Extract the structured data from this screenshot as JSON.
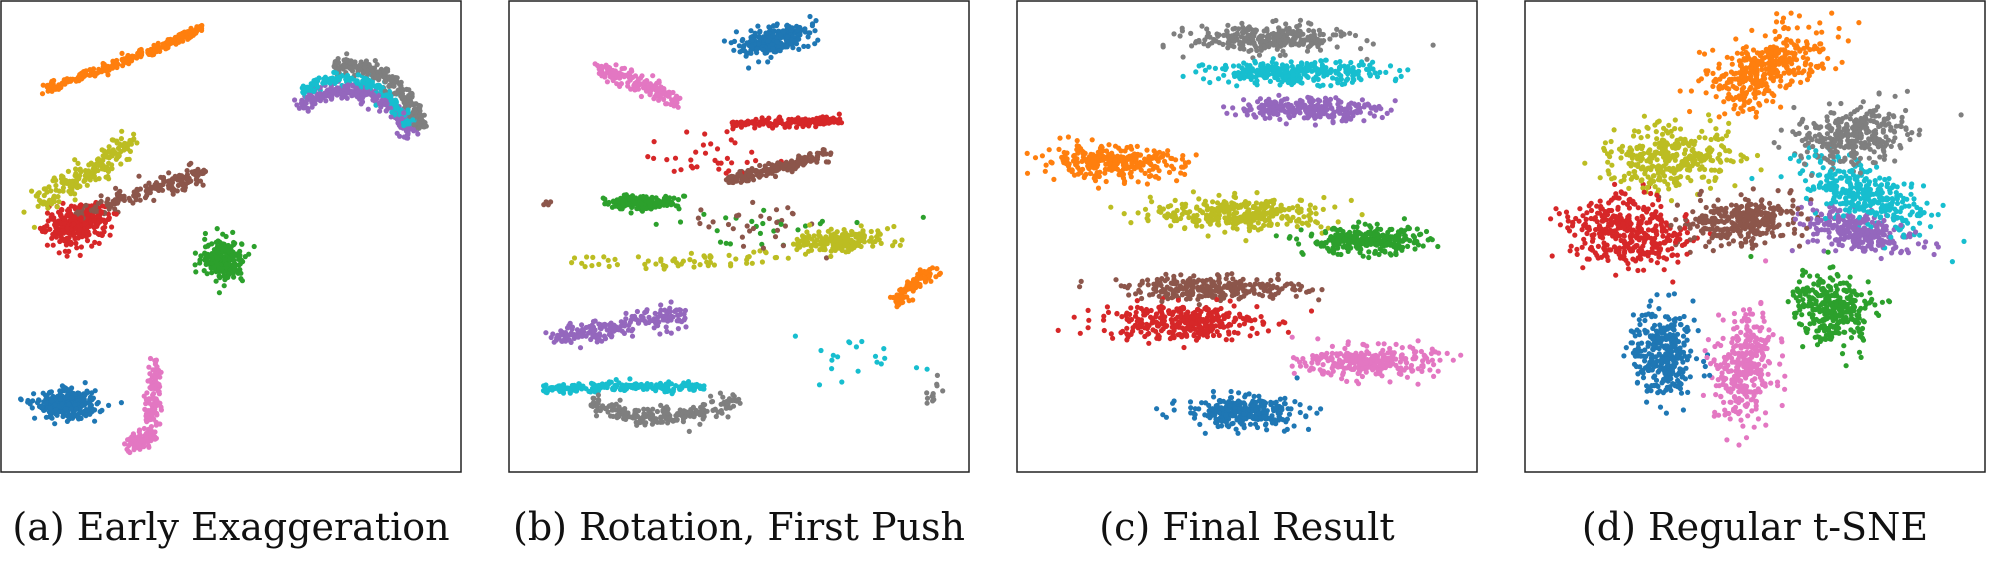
{
  "chart_data": [
    {
      "type": "scatter",
      "caption": "(a) Early Exaggeration",
      "grid": false,
      "series": [
        {
          "color": "#ff7f0e",
          "clusters": [
            {
              "line": [
                [
                  -0.85,
                  0.66
                ],
                [
                  -0.6,
                  0.74
                ],
                [
                  -0.35,
                  0.83
                ],
                [
                  -0.13,
                  0.93
                ]
              ],
              "count": 260,
              "spread": 0.01
            }
          ]
        },
        {
          "color": "#7f7f7f",
          "clusters": [
            {
              "arc": {
                "cx": 0.53,
                "cy": 0.42,
                "r": 0.34,
                "a0": 100,
                "a1": 10
              },
              "count": 260,
              "spread": 0.018
            }
          ]
        },
        {
          "color": "#17becf",
          "clusters": [
            {
              "arc": {
                "cx": 0.51,
                "cy": 0.38,
                "r": 0.32,
                "a0": 125,
                "a1": 20
              },
              "count": 220,
              "spread": 0.016
            }
          ]
        },
        {
          "color": "#9467bd",
          "clusters": [
            {
              "arc": {
                "cx": 0.52,
                "cy": 0.32,
                "r": 0.33,
                "a0": 130,
                "a1": 22
              },
              "count": 230,
              "spread": 0.018
            }
          ]
        },
        {
          "color": "#bcbd22",
          "clusters": [
            {
              "line": [
                [
                  -0.88,
                  0.15
                ],
                [
                  -0.65,
                  0.28
                ],
                [
                  -0.46,
                  0.43
                ]
              ],
              "count": 200,
              "spread": 0.03
            }
          ]
        },
        {
          "color": "#8c564b",
          "clusters": [
            {
              "line": [
                [
                  -0.7,
                  0.1
                ],
                [
                  -0.4,
                  0.2
                ],
                [
                  -0.13,
                  0.28
                ]
              ],
              "count": 200,
              "spread": 0.02
            }
          ]
        },
        {
          "color": "#d62728",
          "clusters": [
            {
              "ellipse": {
                "cx": -0.7,
                "cy": 0.05,
                "rx": 0.14,
                "ry": 0.08,
                "rot": 15
              },
              "count": 320
            }
          ]
        },
        {
          "color": "#2ca02c",
          "clusters": [
            {
              "ellipse": {
                "cx": -0.03,
                "cy": -0.1,
                "rx": 0.1,
                "ry": 0.09,
                "rot": -10
              },
              "count": 230
            }
          ]
        },
        {
          "color": "#1f77b4",
          "clusters": [
            {
              "ellipse": {
                "cx": -0.75,
                "cy": -0.75,
                "rx": 0.14,
                "ry": 0.06,
                "rot": 0
              },
              "count": 300
            }
          ]
        },
        {
          "color": "#e377c2",
          "clusters": [
            {
              "line": [
                [
                  -0.35,
                  -0.57
                ],
                [
                  -0.35,
                  -0.72
                ],
                [
                  -0.38,
                  -0.9
                ],
                [
                  -0.47,
                  -0.93
                ]
              ],
              "count": 200,
              "spread": 0.018
            }
          ]
        }
      ]
    },
    {
      "type": "scatter",
      "caption": "(b) Rotation, First Push",
      "grid": false,
      "series": [
        {
          "color": "#1f77b4",
          "clusters": [
            {
              "ellipse": {
                "cx": 0.16,
                "cy": 0.87,
                "rx": 0.15,
                "ry": 0.06,
                "rot": 15
              },
              "count": 250
            }
          ]
        },
        {
          "color": "#e377c2",
          "clusters": [
            {
              "line": [
                [
                  -0.62,
                  0.74
                ],
                [
                  -0.45,
                  0.68
                ],
                [
                  -0.28,
                  0.6
                ]
              ],
              "count": 160,
              "spread": 0.02
            }
          ]
        },
        {
          "color": "#d62728",
          "clusters": [
            {
              "line": [
                [
                  -0.04,
                  0.5
                ],
                [
                  0.28,
                  0.51
                ],
                [
                  0.47,
                  0.52
                ]
              ],
              "count": 160,
              "spread": 0.01
            },
            {
              "ellipse": {
                "cx": -0.12,
                "cy": 0.35,
                "rx": 0.28,
                "ry": 0.12,
                "rot": 0
              },
              "count": 35
            }
          ]
        },
        {
          "color": "#8c564b",
          "clusters": [
            {
              "line": [
                [
                  -0.05,
                  0.25
                ],
                [
                  0.2,
                  0.31
                ],
                [
                  0.4,
                  0.37
                ]
              ],
              "count": 170,
              "spread": 0.015
            },
            {
              "ellipse": {
                "cx": 0.12,
                "cy": 0.05,
                "rx": 0.3,
                "ry": 0.1,
                "rot": 0
              },
              "count": 30
            },
            {
              "ellipse": {
                "cx": -0.87,
                "cy": 0.15,
                "rx": 0.02,
                "ry": 0.02,
                "rot": 0
              },
              "count": 4
            }
          ]
        },
        {
          "color": "#2ca02c",
          "clusters": [
            {
              "ellipse": {
                "cx": -0.45,
                "cy": 0.15,
                "rx": 0.16,
                "ry": 0.03,
                "rot": 0
              },
              "count": 150
            },
            {
              "ellipse": {
                "cx": 0.15,
                "cy": 0.05,
                "rx": 0.6,
                "ry": 0.08,
                "rot": 0
              },
              "count": 25
            }
          ]
        },
        {
          "color": "#bcbd22",
          "clusters": [
            {
              "ellipse": {
                "cx": 0.46,
                "cy": -0.02,
                "rx": 0.2,
                "ry": 0.05,
                "rot": 3
              },
              "count": 180
            },
            {
              "line": [
                [
                  -0.82,
                  -0.12
                ],
                [
                  -0.2,
                  -0.12
                ],
                [
                  0.2,
                  -0.08
                ]
              ],
              "count": 60,
              "spread": 0.02
            }
          ]
        },
        {
          "color": "#ff7f0e",
          "clusters": [
            {
              "line": [
                [
                  0.72,
                  -0.3
                ],
                [
                  0.78,
                  -0.22
                ],
                [
                  0.9,
                  -0.15
                ]
              ],
              "count": 100,
              "spread": 0.018
            }
          ]
        },
        {
          "color": "#9467bd",
          "clusters": [
            {
              "line": [
                [
                  -0.85,
                  -0.45
                ],
                [
                  -0.55,
                  -0.4
                ],
                [
                  -0.25,
                  -0.35
                ]
              ],
              "count": 200,
              "spread": 0.025
            }
          ]
        },
        {
          "color": "#17becf",
          "clusters": [
            {
              "line": [
                [
                  -0.9,
                  -0.68
                ],
                [
                  -0.55,
                  -0.67
                ],
                [
                  -0.15,
                  -0.67
                ]
              ],
              "count": 220,
              "spread": 0.01
            },
            {
              "ellipse": {
                "cx": 0.55,
                "cy": -0.55,
                "rx": 0.35,
                "ry": 0.12,
                "rot": 0
              },
              "count": 20
            }
          ]
        },
        {
          "color": "#7f7f7f",
          "clusters": [
            {
              "arc": {
                "cx": -0.35,
                "cy": 0.15,
                "r": 0.95,
                "a0": 250,
                "a1": 292
              },
              "count": 220,
              "spread": 0.02
            },
            {
              "ellipse": {
                "cx": 0.88,
                "cy": -0.7,
                "rx": 0.05,
                "ry": 0.1,
                "rot": 0
              },
              "count": 12
            }
          ]
        }
      ]
    },
    {
      "type": "scatter",
      "caption": "(c) Final Result",
      "grid": false,
      "series": [
        {
          "color": "#7f7f7f",
          "clusters": [
            {
              "ellipse": {
                "cx": 0.1,
                "cy": 0.88,
                "rx": 0.35,
                "ry": 0.06,
                "rot": 0
              },
              "count": 300
            }
          ]
        },
        {
          "color": "#17becf",
          "clusters": [
            {
              "ellipse": {
                "cx": 0.22,
                "cy": 0.73,
                "rx": 0.4,
                "ry": 0.05,
                "rot": 0
              },
              "count": 300
            }
          ]
        },
        {
          "color": "#9467bd",
          "clusters": [
            {
              "ellipse": {
                "cx": 0.28,
                "cy": 0.57,
                "rx": 0.32,
                "ry": 0.05,
                "rot": 0
              },
              "count": 260
            }
          ]
        },
        {
          "color": "#ff7f0e",
          "clusters": [
            {
              "ellipse": {
                "cx": -0.62,
                "cy": 0.33,
                "rx": 0.32,
                "ry": 0.07,
                "rot": -2
              },
              "count": 300
            }
          ]
        },
        {
          "color": "#bcbd22",
          "clusters": [
            {
              "ellipse": {
                "cx": -0.02,
                "cy": 0.1,
                "rx": 0.4,
                "ry": 0.07,
                "rot": 0
              },
              "count": 320
            }
          ]
        },
        {
          "color": "#2ca02c",
          "clusters": [
            {
              "ellipse": {
                "cx": 0.55,
                "cy": -0.02,
                "rx": 0.28,
                "ry": 0.06,
                "rot": 0
              },
              "count": 280
            }
          ]
        },
        {
          "color": "#8c564b",
          "clusters": [
            {
              "ellipse": {
                "cx": -0.15,
                "cy": -0.23,
                "rx": 0.4,
                "ry": 0.05,
                "rot": 0
              },
              "count": 280
            }
          ]
        },
        {
          "color": "#d62728",
          "clusters": [
            {
              "ellipse": {
                "cx": -0.3,
                "cy": -0.38,
                "rx": 0.36,
                "ry": 0.08,
                "rot": 0
              },
              "count": 320
            }
          ]
        },
        {
          "color": "#e377c2",
          "clusters": [
            {
              "ellipse": {
                "cx": 0.56,
                "cy": -0.56,
                "rx": 0.3,
                "ry": 0.07,
                "rot": 0
              },
              "count": 280
            }
          ]
        },
        {
          "color": "#1f77b4",
          "clusters": [
            {
              "ellipse": {
                "cx": -0.02,
                "cy": -0.78,
                "rx": 0.26,
                "ry": 0.07,
                "rot": 0
              },
              "count": 280
            }
          ]
        }
      ]
    },
    {
      "type": "scatter",
      "caption": "(d) Regular t-SNE",
      "grid": false,
      "series": [
        {
          "color": "#ff7f0e",
          "clusters": [
            {
              "ellipse": {
                "cx": 0.05,
                "cy": 0.75,
                "rx": 0.3,
                "ry": 0.14,
                "rot": 25
              },
              "count": 380
            }
          ]
        },
        {
          "color": "#7f7f7f",
          "clusters": [
            {
              "ellipse": {
                "cx": 0.45,
                "cy": 0.45,
                "rx": 0.26,
                "ry": 0.12,
                "rot": 5
              },
              "count": 320
            }
          ]
        },
        {
          "color": "#17becf",
          "clusters": [
            {
              "ellipse": {
                "cx": 0.5,
                "cy": 0.18,
                "rx": 0.3,
                "ry": 0.12,
                "rot": -20
              },
              "count": 340
            }
          ]
        },
        {
          "color": "#9467bd",
          "clusters": [
            {
              "ellipse": {
                "cx": 0.48,
                "cy": 0.02,
                "rx": 0.26,
                "ry": 0.09,
                "rot": -8
              },
              "count": 260
            }
          ]
        },
        {
          "color": "#bcbd22",
          "clusters": [
            {
              "ellipse": {
                "cx": -0.38,
                "cy": 0.35,
                "rx": 0.28,
                "ry": 0.13,
                "rot": 5
              },
              "count": 340
            }
          ]
        },
        {
          "color": "#8c564b",
          "clusters": [
            {
              "ellipse": {
                "cx": -0.08,
                "cy": 0.07,
                "rx": 0.26,
                "ry": 0.1,
                "rot": 3
              },
              "count": 320
            }
          ]
        },
        {
          "color": "#d62728",
          "clusters": [
            {
              "ellipse": {
                "cx": -0.58,
                "cy": 0.02,
                "rx": 0.28,
                "ry": 0.15,
                "rot": -8
              },
              "count": 380
            }
          ]
        },
        {
          "color": "#2ca02c",
          "clusters": [
            {
              "ellipse": {
                "cx": 0.35,
                "cy": -0.32,
                "rx": 0.18,
                "ry": 0.14,
                "rot": -25
              },
              "count": 300
            }
          ]
        },
        {
          "color": "#1f77b4",
          "clusters": [
            {
              "ellipse": {
                "cx": -0.42,
                "cy": -0.52,
                "rx": 0.14,
                "ry": 0.2,
                "rot": 10
              },
              "count": 320
            }
          ]
        },
        {
          "color": "#e377c2",
          "clusters": [
            {
              "ellipse": {
                "cx": -0.05,
                "cy": -0.58,
                "rx": 0.13,
                "ry": 0.25,
                "rot": -5
              },
              "count": 330
            }
          ]
        }
      ]
    }
  ]
}
